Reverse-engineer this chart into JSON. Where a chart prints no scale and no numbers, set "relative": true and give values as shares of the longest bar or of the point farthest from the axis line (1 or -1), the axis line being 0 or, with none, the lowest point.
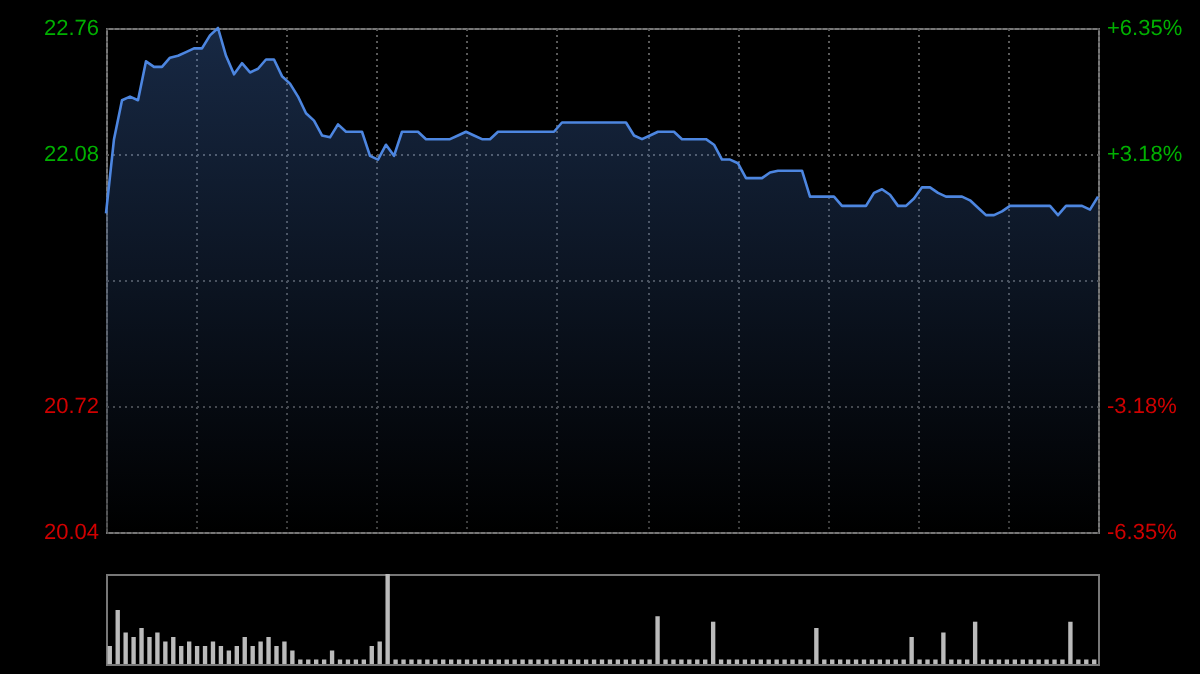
{
  "chart_data": [
    {
      "type": "area",
      "grid": true,
      "categories": [
        null,
        null,
        null,
        null,
        null,
        null,
        null,
        null,
        null,
        null,
        null,
        null,
        null,
        null,
        null,
        null,
        null,
        null,
        null,
        null,
        null,
        null,
        null,
        null,
        null,
        null,
        null,
        null,
        null,
        null,
        null,
        null,
        null,
        null,
        null,
        null,
        null,
        null,
        null,
        null,
        null,
        null,
        null,
        null,
        null,
        null,
        null,
        null,
        null,
        null,
        null,
        null,
        null,
        null,
        null,
        null,
        null,
        null,
        null,
        null,
        null,
        null,
        null,
        null,
        null,
        null,
        null,
        null,
        null,
        null,
        null,
        null,
        null,
        null,
        null,
        null,
        null,
        null,
        null,
        null,
        null,
        null,
        null,
        null,
        null,
        null,
        null,
        null,
        null,
        null,
        null,
        null,
        null,
        null,
        null,
        null,
        null,
        null,
        null,
        null,
        null,
        null,
        null,
        null,
        null,
        null,
        null,
        null,
        null,
        null,
        null,
        null,
        null,
        null,
        null,
        null,
        null,
        null,
        null,
        null,
        null,
        null,
        null,
        null,
        null
      ],
      "series": [
        {
          "color": "#4d86e0",
          "values": [
            21.76,
            22.16,
            22.37,
            22.39,
            22.37,
            22.58,
            22.55,
            22.55,
            22.6,
            22.61,
            22.63,
            22.65,
            22.65,
            22.72,
            22.76,
            22.61,
            22.51,
            22.57,
            22.52,
            22.54,
            22.59,
            22.59,
            22.5,
            22.46,
            22.39,
            22.3,
            22.26,
            22.18,
            22.17,
            22.24,
            22.2,
            22.2,
            22.2,
            22.07,
            22.05,
            22.13,
            22.07,
            22.2,
            22.2,
            22.2,
            22.16,
            22.16,
            22.16,
            22.16,
            22.18,
            22.2,
            22.18,
            22.16,
            22.16,
            22.2,
            22.2,
            22.2,
            22.2,
            22.2,
            22.2,
            22.2,
            22.2,
            22.25,
            22.25,
            22.25,
            22.25,
            22.25,
            22.25,
            22.25,
            22.25,
            22.25,
            22.18,
            22.16,
            22.18,
            22.2,
            22.2,
            22.2,
            22.16,
            22.16,
            22.16,
            22.16,
            22.13,
            22.05,
            22.05,
            22.03,
            21.95,
            21.95,
            21.95,
            21.98,
            21.99,
            21.99,
            21.99,
            21.99,
            21.85,
            21.85,
            21.85,
            21.85,
            21.8,
            21.8,
            21.8,
            21.8,
            21.87,
            21.89,
            21.86,
            21.8,
            21.8,
            21.84,
            21.9,
            21.9,
            21.87,
            21.85,
            21.85,
            21.85,
            21.83,
            21.79,
            21.75,
            21.75,
            21.77,
            21.8,
            21.8,
            21.8,
            21.8,
            21.8,
            21.8,
            21.75,
            21.8,
            21.8,
            21.8,
            21.78,
            21.85
          ]
        }
      ],
      "ylim": [
        20.04,
        22.76
      ],
      "yticks": [
        22.76,
        22.08,
        {
          "value": 21.4,
          "label": null
        },
        20.72,
        20.04
      ],
      "y2lim": [
        -6.35,
        6.35
      ],
      "y2ticks": [
        {
          "value": 6.35,
          "label": "+6.35%"
        },
        {
          "value": 3.18,
          "label": "+3.18%"
        },
        {
          "value": -3.18,
          "label": "-3.18%"
        },
        {
          "value": -6.35,
          "label": "-6.35%"
        }
      ]
    },
    {
      "type": "bar",
      "relative": true,
      "categories": [
        null,
        null,
        null,
        null,
        null,
        null,
        null,
        null,
        null,
        null,
        null,
        null,
        null,
        null,
        null,
        null,
        null,
        null,
        null,
        null,
        null,
        null,
        null,
        null,
        null,
        null,
        null,
        null,
        null,
        null,
        null,
        null,
        null,
        null,
        null,
        null,
        null,
        null,
        null,
        null,
        null,
        null,
        null,
        null,
        null,
        null,
        null,
        null,
        null,
        null,
        null,
        null,
        null,
        null,
        null,
        null,
        null,
        null,
        null,
        null,
        null,
        null,
        null,
        null,
        null,
        null,
        null,
        null,
        null,
        null,
        null,
        null,
        null,
        null,
        null,
        null,
        null,
        null,
        null,
        null,
        null,
        null,
        null,
        null,
        null,
        null,
        null,
        null,
        null,
        null,
        null,
        null,
        null,
        null,
        null,
        null,
        null,
        null,
        null,
        null,
        null,
        null,
        null,
        null,
        null,
        null,
        null,
        null,
        null,
        null,
        null,
        null,
        null,
        null,
        null,
        null,
        null,
        null,
        null,
        null,
        null,
        null,
        null,
        null,
        null
      ],
      "series": [
        {
          "color": "#bbbbbb",
          "values": [
            0.2,
            0.6,
            0.35,
            0.3,
            0.4,
            0.3,
            0.35,
            0.25,
            0.3,
            0.2,
            0.25,
            0.2,
            0.2,
            0.25,
            0.2,
            0.15,
            0.2,
            0.3,
            0.2,
            0.25,
            0.3,
            0.2,
            0.25,
            0.15,
            0.05,
            0.05,
            0.05,
            0.05,
            0.15,
            0.05,
            0.05,
            0.05,
            0.05,
            0.2,
            0.25,
            1,
            0.05,
            0.05,
            0.05,
            0.05,
            0.05,
            0.05,
            0.05,
            0.05,
            0.05,
            0.05,
            0.05,
            0.05,
            0.05,
            0.05,
            0.05,
            0.05,
            0.05,
            0.05,
            0.05,
            0.05,
            0.05,
            0.05,
            0.05,
            0.05,
            0.05,
            0.05,
            0.05,
            0.05,
            0.05,
            0.05,
            0.05,
            0.05,
            0.05,
            0.53,
            0.05,
            0.05,
            0.05,
            0.05,
            0.05,
            0.05,
            0.47,
            0.05,
            0.05,
            0.05,
            0.05,
            0.05,
            0.05,
            0.05,
            0.05,
            0.05,
            0.05,
            0.05,
            0.05,
            0.4,
            0.05,
            0.05,
            0.05,
            0.05,
            0.05,
            0.05,
            0.05,
            0.05,
            0.05,
            0.05,
            0.05,
            0.3,
            0.05,
            0.05,
            0.05,
            0.35,
            0.05,
            0.05,
            0.05,
            0.47,
            0.05,
            0.05,
            0.05,
            0.05,
            0.05,
            0.05,
            0.05,
            0.05,
            0.05,
            0.05,
            0.05,
            0.47,
            0.05,
            0.05,
            0.05
          ]
        }
      ]
    }
  ]
}
